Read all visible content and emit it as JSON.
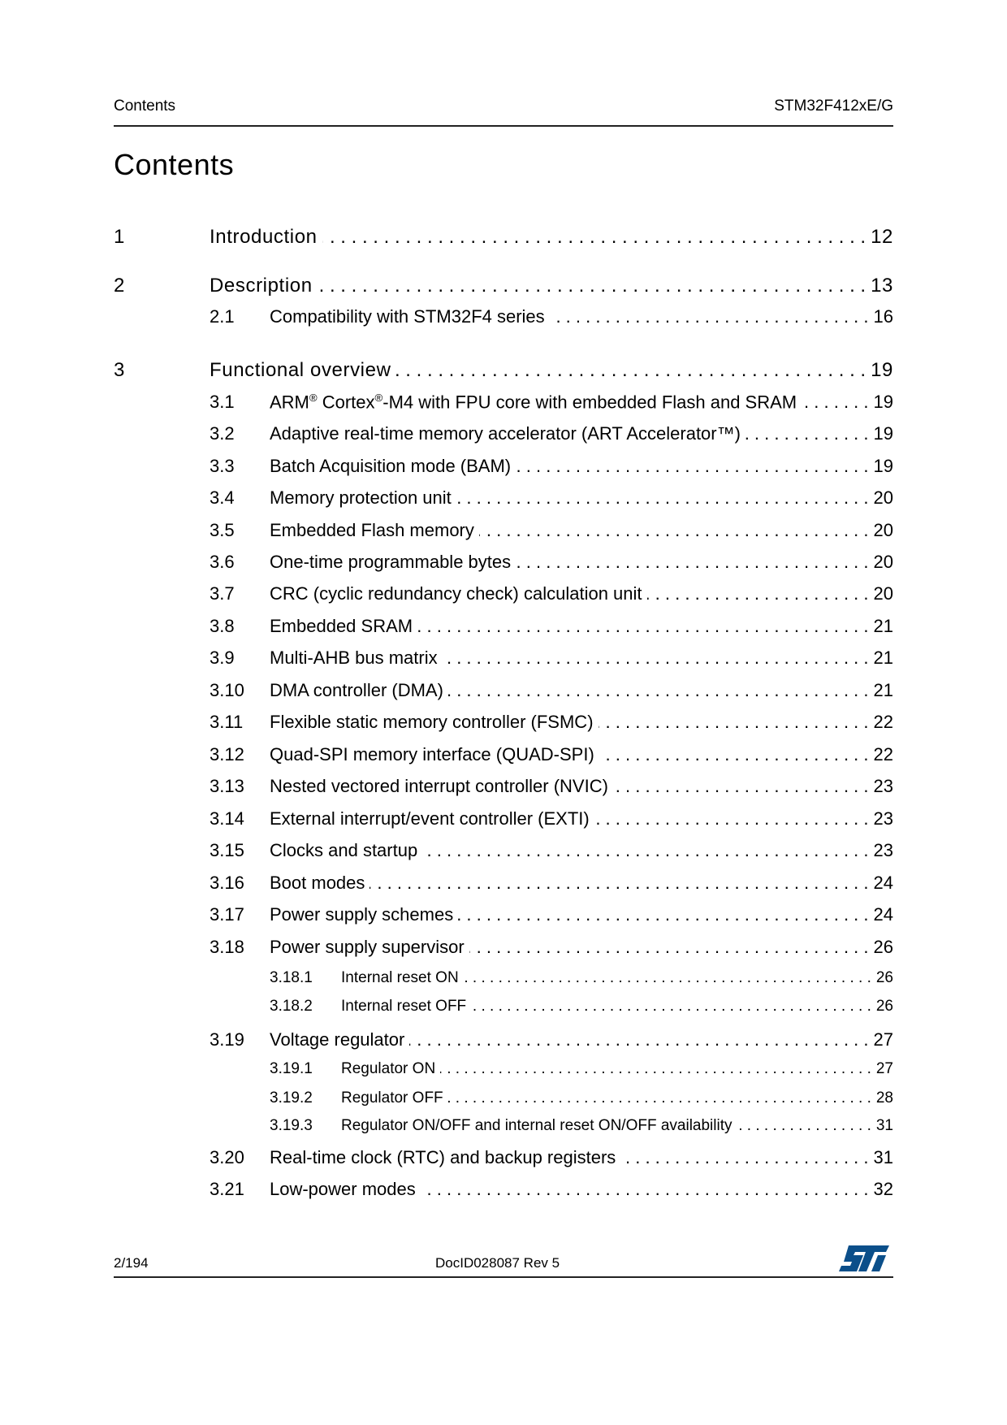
{
  "header": {
    "section": "Contents",
    "doc": "STM32F412xE/G"
  },
  "title": "Contents",
  "entries": [
    {
      "level": 1,
      "num": "1",
      "text": "Introduction",
      "page": "12"
    },
    {
      "level": 1,
      "num": "2",
      "text": "Description",
      "page": "13"
    },
    {
      "level": 2,
      "num": "2.1",
      "text": "Compatibility with STM32F4 series",
      "page": "16"
    },
    {
      "level": 1,
      "num": "3",
      "text": "Functional overview",
      "page": "19"
    },
    {
      "level": 2,
      "num": "3.1",
      "text": "ARM® Cortex®-M4 with FPU core with embedded Flash and SRAM",
      "page": "19"
    },
    {
      "level": 2,
      "num": "3.2",
      "text": "Adaptive real-time memory accelerator (ART Accelerator™)",
      "page": "19"
    },
    {
      "level": 2,
      "num": "3.3",
      "text": "Batch Acquisition mode (BAM)",
      "page": "19"
    },
    {
      "level": 2,
      "num": "3.4",
      "text": "Memory protection unit",
      "page": "20"
    },
    {
      "level": 2,
      "num": "3.5",
      "text": "Embedded Flash memory",
      "page": "20"
    },
    {
      "level": 2,
      "num": "3.6",
      "text": "One-time programmable bytes",
      "page": "20"
    },
    {
      "level": 2,
      "num": "3.7",
      "text": "CRC (cyclic redundancy check) calculation unit",
      "page": "20"
    },
    {
      "level": 2,
      "num": "3.8",
      "text": "Embedded SRAM",
      "page": "21"
    },
    {
      "level": 2,
      "num": "3.9",
      "text": "Multi-AHB bus matrix",
      "page": "21"
    },
    {
      "level": 2,
      "num": "3.10",
      "text": "DMA controller (DMA)",
      "page": "21"
    },
    {
      "level": 2,
      "num": "3.11",
      "text": "Flexible static memory controller (FSMC)",
      "page": "22"
    },
    {
      "level": 2,
      "num": "3.12",
      "text": "Quad-SPI memory interface (QUAD-SPI)",
      "page": "22"
    },
    {
      "level": 2,
      "num": "3.13",
      "text": "Nested vectored interrupt controller (NVIC)",
      "page": "23"
    },
    {
      "level": 2,
      "num": "3.14",
      "text": "External interrupt/event controller (EXTI)",
      "page": "23"
    },
    {
      "level": 2,
      "num": "3.15",
      "text": "Clocks and startup",
      "page": "23"
    },
    {
      "level": 2,
      "num": "3.16",
      "text": "Boot modes",
      "page": "24"
    },
    {
      "level": 2,
      "num": "3.17",
      "text": "Power supply schemes",
      "page": "24"
    },
    {
      "level": 2,
      "num": "3.18",
      "text": "Power supply supervisor",
      "page": "26"
    },
    {
      "level": 3,
      "num": "3.18.1",
      "text": "Internal reset ON",
      "page": "26"
    },
    {
      "level": 3,
      "num": "3.18.2",
      "text": "Internal reset OFF",
      "page": "26"
    },
    {
      "level": 2,
      "num": "3.19",
      "text": "Voltage regulator",
      "page": "27"
    },
    {
      "level": 3,
      "num": "3.19.1",
      "text": "Regulator ON",
      "page": "27"
    },
    {
      "level": 3,
      "num": "3.19.2",
      "text": "Regulator OFF",
      "page": "28"
    },
    {
      "level": 3,
      "num": "3.19.3",
      "text": "Regulator ON/OFF and internal reset ON/OFF availability",
      "page": "31"
    },
    {
      "level": 2,
      "num": "3.20",
      "text": "Real-time clock (RTC) and backup registers",
      "page": "31"
    },
    {
      "level": 2,
      "num": "3.21",
      "text": "Low-power modes",
      "page": "32"
    }
  ],
  "footer": {
    "page": "2/194",
    "docid": "DocID028087 Rev 5",
    "logo_text": "ST",
    "logo_color": "#0b4f8a"
  }
}
